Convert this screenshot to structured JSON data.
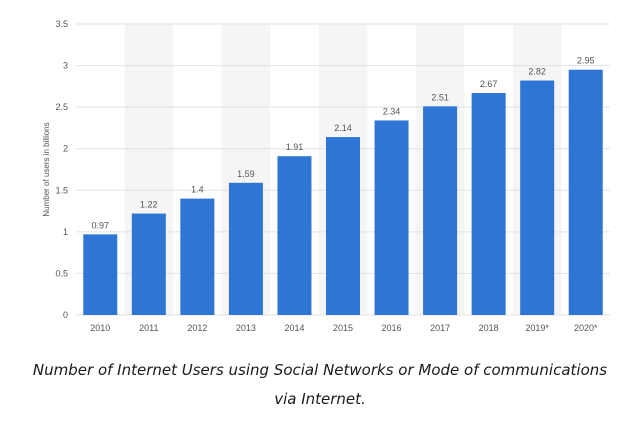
{
  "caption": "Number of Internet Users using Social Networks or Mode of communications via Internet.",
  "colors": {
    "bar": "#2e75d4",
    "band": "#f5f5f5",
    "grid": "#e2e2e2",
    "text": "#555555"
  },
  "chart_data": {
    "type": "bar",
    "title": "",
    "xlabel": "",
    "ylabel": "Number of users in billions",
    "ylim": [
      0,
      3.5
    ],
    "yticks": [
      "0",
      "0.5",
      "1",
      "1.5",
      "2",
      "2.5",
      "3",
      "3.5"
    ],
    "grid": true,
    "categories": [
      "2010",
      "2011",
      "2012",
      "2013",
      "2014",
      "2015",
      "2016",
      "2017",
      "2018",
      "2019*",
      "2020*"
    ],
    "values": [
      0.97,
      1.22,
      1.4,
      1.59,
      1.91,
      2.14,
      2.34,
      2.51,
      2.67,
      2.82,
      2.95
    ],
    "value_labels": [
      "0.97",
      "1.22",
      "1.4",
      "1.59",
      "1.91",
      "2.14",
      "2.34",
      "2.51",
      "2.67",
      "2.82",
      "2.95"
    ]
  }
}
